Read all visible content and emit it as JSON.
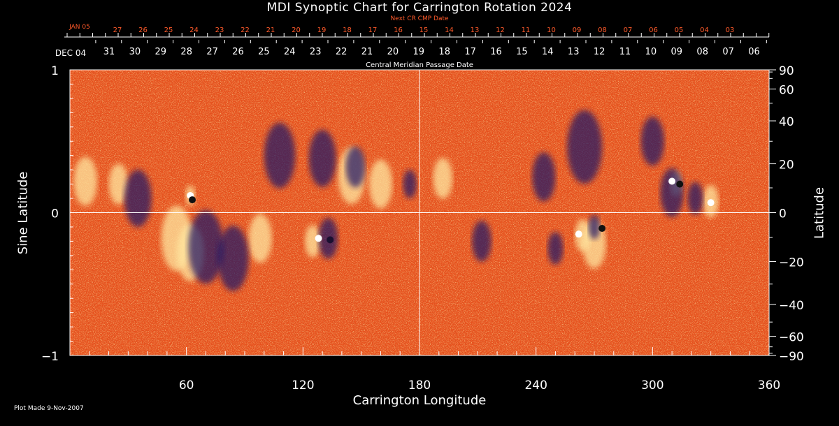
{
  "chart_data": {
    "type": "heatmap",
    "title": "MDI Synoptic Chart for Carrington Rotation 2024",
    "xlabel": "Carrington Longitude",
    "ylabel_left": "Sine Latitude",
    "ylabel_right": "Latitude",
    "xlim": [
      0,
      360
    ],
    "ylim": [
      -1,
      1
    ],
    "x_ticks": [
      60,
      120,
      180,
      240,
      300,
      360
    ],
    "y_ticks_left": [
      {
        "value": 1,
        "label": "1"
      },
      {
        "value": 0,
        "label": "0"
      },
      {
        "value": -1,
        "label": "−1"
      }
    ],
    "y_ticks_right": [
      {
        "deg": 90,
        "label": "90"
      },
      {
        "deg": 60,
        "label": "60"
      },
      {
        "deg": 40,
        "label": "40"
      },
      {
        "deg": 20,
        "label": "20"
      },
      {
        "deg": 0,
        "label": "0"
      },
      {
        "deg": -20,
        "label": "−20"
      },
      {
        "deg": -40,
        "label": "−40"
      },
      {
        "deg": -60,
        "label": "−60"
      },
      {
        "deg": -90,
        "label": "−90"
      }
    ],
    "top_axis_next_cr": {
      "label": "Next CR CMP Date",
      "first_label": "JAN 05",
      "dates": [
        "27",
        "26",
        "25",
        "24",
        "23",
        "22",
        "21",
        "20",
        "19",
        "18",
        "17",
        "16",
        "15",
        "14",
        "13",
        "12",
        "11",
        "10",
        "09",
        "08",
        "07",
        "06",
        "05",
        "04",
        "03"
      ]
    },
    "top_axis_cmp": {
      "label": "Central Meridian Passage Date",
      "first_label": "DEC 04",
      "dates": [
        "31",
        "30",
        "29",
        "28",
        "27",
        "26",
        "25",
        "24",
        "23",
        "22",
        "21",
        "20",
        "19",
        "18",
        "17",
        "16",
        "15",
        "14",
        "13",
        "12",
        "11",
        "10",
        "09",
        "08",
        "07",
        "06"
      ]
    },
    "grid": "lines at longitude 180 and sine latitude 0",
    "colors": {
      "background_field": "#e8501c",
      "positive_polarity": "#ffffff",
      "negative_polarity": "#1b1868",
      "grid": "#ffffff",
      "next_cr_axis": "#ff5a2a"
    }
  },
  "footer": {
    "plot_made": "Plot Made  9-Nov-2007"
  }
}
